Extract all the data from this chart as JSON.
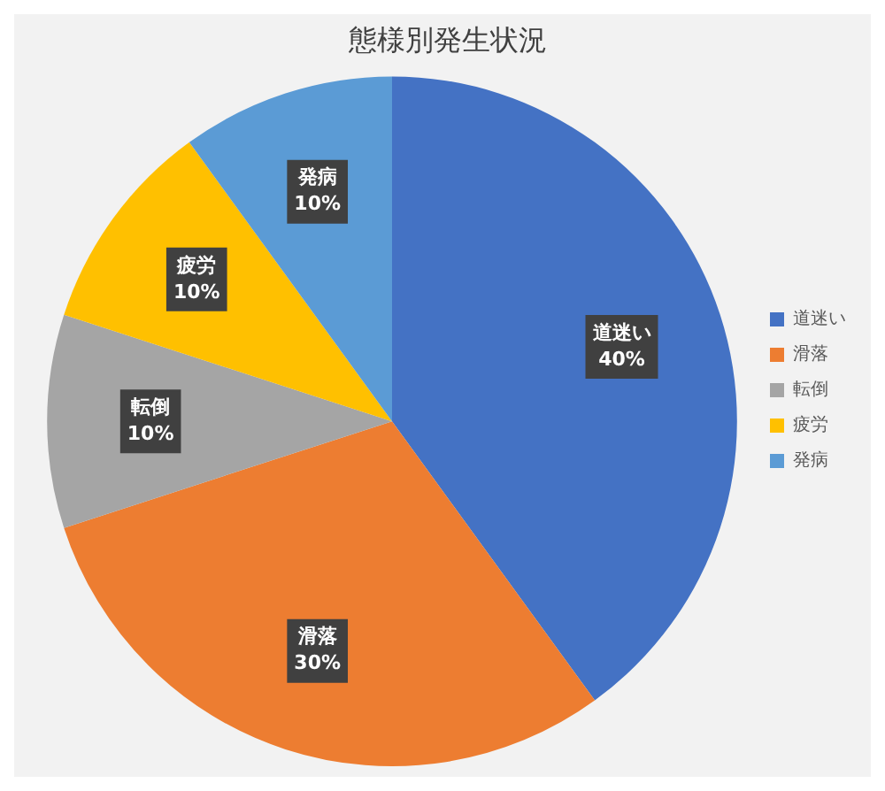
{
  "chart_data": {
    "type": "pie",
    "title": "態様別発生状況",
    "categories": [
      "道迷い",
      "滑落",
      "転倒",
      "疲労",
      "発病"
    ],
    "values": [
      40,
      30,
      10,
      10,
      10
    ],
    "colors": [
      "#4472c4",
      "#ed7d31",
      "#a5a5a5",
      "#ffc000",
      "#5b9bd5"
    ],
    "value_labels": [
      "40%",
      "30%",
      "10%",
      "10%",
      "10%"
    ],
    "legend": "right"
  }
}
